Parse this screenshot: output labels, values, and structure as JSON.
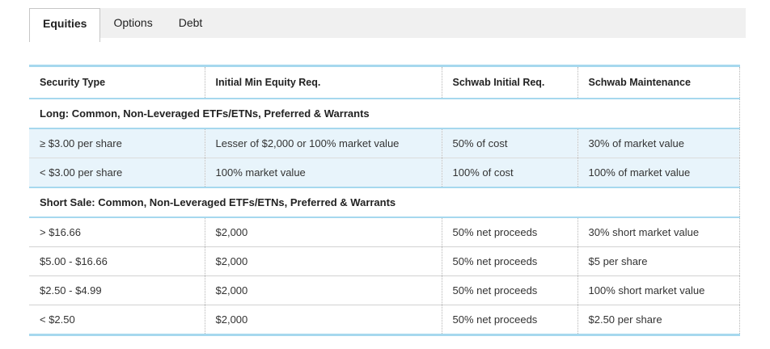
{
  "tabs": [
    {
      "label": "Equities",
      "active": true
    },
    {
      "label": "Options",
      "active": false
    },
    {
      "label": "Debt",
      "active": false
    }
  ],
  "table": {
    "columns": [
      "Security Type",
      "Initial Min Equity Req.",
      "Schwab Initial Req.",
      "Schwab Maintenance"
    ],
    "sections": [
      {
        "header": "Long: Common, Non-Leveraged ETFs/ETNs, Preferred & Warrants",
        "rows": [
          [
            "≥ $3.00 per share",
            "Lesser of $2,000 or 100% market value",
            "50% of cost",
            "30% of market value"
          ],
          [
            "< $3.00 per share",
            "100% market value",
            "100% of cost",
            "100% of market value"
          ]
        ]
      },
      {
        "header": "Short Sale: Common, Non-Leveraged ETFs/ETNs, Preferred & Warrants",
        "rows": [
          [
            "> $16.66",
            "$2,000",
            "50% net proceeds",
            "30% short market value"
          ],
          [
            "$5.00 - $16.66",
            "$2,000",
            "50% net proceeds",
            "$5 per share"
          ],
          [
            "$2.50 - $4.99",
            "$2,000",
            "50% net proceeds",
            "100% short market value"
          ],
          [
            "< $2.50",
            "$2,000",
            "50% net proceeds",
            "$2.50 per share"
          ]
        ]
      }
    ]
  },
  "colors": {
    "accent_blue_border": "#a6d8ee",
    "row_highlight_bg": "#e8f4fb",
    "tab_strip_bg": "#f0f0f0",
    "body_text": "#333333"
  }
}
